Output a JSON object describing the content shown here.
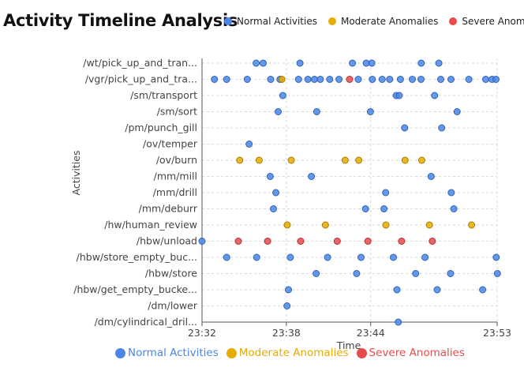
{
  "colors": {
    "normal": "#4a86e8",
    "moderate": "#e6ac00",
    "severe": "#e84b4b",
    "grid": "#d9d9d9"
  },
  "legend": {
    "normal": "Normal Activities",
    "moderate": "Moderate Anomalies",
    "severe": "Severe Anomalies"
  },
  "chart_data": {
    "type": "scatter",
    "title": "Activity Timeline Analysis",
    "xlabel": "Time",
    "ylabel": "Activities",
    "legend_position": "top-right",
    "grid": true,
    "xlim": [
      "23:32",
      "23:53"
    ],
    "x_ticks": [
      "23:32",
      "23:38",
      "23:44",
      "23:53"
    ],
    "categories": [
      "/wt/pick_up_and_tran...",
      "/vgr/pick_up_and_tra...",
      "/sm/transport",
      "/sm/sort",
      "/pm/punch_gill",
      "/ov/temper",
      "/ov/burn",
      "/mm/mill",
      "/mm/drill",
      "/mm/deburr",
      "/hw/human_review",
      "/hbw/unload",
      "/hbw/store_empty_buc...",
      "/hbw/store",
      "/hbw/get_empty_bucke...",
      "/dm/lower",
      "/dm/cylindrical_dril..."
    ],
    "series": [
      {
        "name": "Normal Activities",
        "points": [
          [
            "23:35:51",
            "/wt/pick_up_and_tran..."
          ],
          [
            "23:36:21",
            "/wt/pick_up_and_tran..."
          ],
          [
            "23:38:58",
            "/wt/pick_up_and_tran..."
          ],
          [
            "23:42:42",
            "/wt/pick_up_and_tran..."
          ],
          [
            "23:43:41",
            "/wt/pick_up_and_tran..."
          ],
          [
            "23:44:05",
            "/wt/pick_up_and_tran..."
          ],
          [
            "23:47:36",
            "/wt/pick_up_and_tran..."
          ],
          [
            "23:48:51",
            "/wt/pick_up_and_tran..."
          ],
          [
            "23:32:53",
            "/vgr/pick_up_and_tra..."
          ],
          [
            "23:33:45",
            "/vgr/pick_up_and_tra..."
          ],
          [
            "23:35:13",
            "/vgr/pick_up_and_tra..."
          ],
          [
            "23:36:53",
            "/vgr/pick_up_and_tra..."
          ],
          [
            "23:37:33",
            "/vgr/pick_up_and_tra..."
          ],
          [
            "23:38:52",
            "/vgr/pick_up_and_tra..."
          ],
          [
            "23:39:32",
            "/vgr/pick_up_and_tra..."
          ],
          [
            "23:40:00",
            "/vgr/pick_up_and_tra..."
          ],
          [
            "23:40:25",
            "/vgr/pick_up_and_tra..."
          ],
          [
            "23:41:05",
            "/vgr/pick_up_and_tra..."
          ],
          [
            "23:41:45",
            "/vgr/pick_up_and_tra..."
          ],
          [
            "23:43:07",
            "/vgr/pick_up_and_tra..."
          ],
          [
            "23:44:07",
            "/vgr/pick_up_and_tra..."
          ],
          [
            "23:44:49",
            "/vgr/pick_up_and_tra..."
          ],
          [
            "23:45:21",
            "/vgr/pick_up_and_tra..."
          ],
          [
            "23:46:07",
            "/vgr/pick_up_and_tra..."
          ],
          [
            "23:46:58",
            "/vgr/pick_up_and_tra..."
          ],
          [
            "23:47:35",
            "/vgr/pick_up_and_tra..."
          ],
          [
            "23:48:59",
            "/vgr/pick_up_and_tra..."
          ],
          [
            "23:49:43",
            "/vgr/pick_up_and_tra..."
          ],
          [
            "23:50:59",
            "/vgr/pick_up_and_tra..."
          ],
          [
            "23:52:11",
            "/vgr/pick_up_and_tra..."
          ],
          [
            "23:52:38",
            "/vgr/pick_up_and_tra..."
          ],
          [
            "23:52:55",
            "/vgr/pick_up_and_tra..."
          ],
          [
            "23:37:45",
            "/sm/transport"
          ],
          [
            "23:45:49",
            "/sm/transport"
          ],
          [
            "23:46:02",
            "/sm/transport"
          ],
          [
            "23:48:33",
            "/sm/transport"
          ],
          [
            "23:37:25",
            "/sm/sort"
          ],
          [
            "23:40:10",
            "/sm/sort"
          ],
          [
            "23:43:59",
            "/sm/sort"
          ],
          [
            "23:50:09",
            "/sm/sort"
          ],
          [
            "23:46:25",
            "/pm/punch_gill"
          ],
          [
            "23:49:03",
            "/pm/punch_gill"
          ],
          [
            "23:35:21",
            "/ov/temper"
          ],
          [
            "23:36:51",
            "/mm/mill"
          ],
          [
            "23:39:47",
            "/mm/mill"
          ],
          [
            "23:48:18",
            "/mm/mill"
          ],
          [
            "23:37:15",
            "/mm/drill"
          ],
          [
            "23:45:04",
            "/mm/drill"
          ],
          [
            "23:49:44",
            "/mm/drill"
          ],
          [
            "23:37:05",
            "/mm/deburr"
          ],
          [
            "23:43:38",
            "/mm/deburr"
          ],
          [
            "23:44:57",
            "/mm/deburr"
          ],
          [
            "23:49:55",
            "/mm/deburr"
          ],
          [
            "23:32:00",
            "/hbw/unload"
          ],
          [
            "23:33:45",
            "/hbw/store_empty_buc..."
          ],
          [
            "23:35:53",
            "/hbw/store_empty_buc..."
          ],
          [
            "23:38:17",
            "/hbw/store_empty_buc..."
          ],
          [
            "23:40:56",
            "/hbw/store_empty_buc..."
          ],
          [
            "23:43:19",
            "/hbw/store_empty_buc..."
          ],
          [
            "23:45:37",
            "/hbw/store_empty_buc..."
          ],
          [
            "23:47:52",
            "/hbw/store_empty_buc..."
          ],
          [
            "23:52:56",
            "/hbw/store_empty_buc..."
          ],
          [
            "23:40:07",
            "/hbw/store"
          ],
          [
            "23:43:00",
            "/hbw/store"
          ],
          [
            "23:47:12",
            "/hbw/store"
          ],
          [
            "23:49:41",
            "/hbw/store"
          ],
          [
            "23:53:01",
            "/hbw/store"
          ],
          [
            "23:38:09",
            "/hbw/get_empty_bucke..."
          ],
          [
            "23:45:52",
            "/hbw/get_empty_bucke..."
          ],
          [
            "23:48:44",
            "/hbw/get_empty_bucke..."
          ],
          [
            "23:51:58",
            "/hbw/get_empty_bucke..."
          ],
          [
            "23:38:03",
            "/dm/lower"
          ],
          [
            "23:45:58",
            "/dm/cylindrical_dril..."
          ]
        ]
      },
      {
        "name": "Moderate Anomalies",
        "points": [
          [
            "23:37:41",
            "/vgr/pick_up_and_tra..."
          ],
          [
            "23:34:41",
            "/ov/burn"
          ],
          [
            "23:36:04",
            "/ov/burn"
          ],
          [
            "23:38:21",
            "/ov/burn"
          ],
          [
            "23:42:11",
            "/ov/burn"
          ],
          [
            "23:43:09",
            "/ov/burn"
          ],
          [
            "23:46:27",
            "/ov/burn"
          ],
          [
            "23:47:38",
            "/ov/burn"
          ],
          [
            "23:38:04",
            "/hw/human_review"
          ],
          [
            "23:40:47",
            "/hw/human_review"
          ],
          [
            "23:45:05",
            "/hw/human_review"
          ],
          [
            "23:48:11",
            "/hw/human_review"
          ],
          [
            "23:51:11",
            "/hw/human_review"
          ]
        ]
      },
      {
        "name": "Severe Anomalies",
        "points": [
          [
            "23:42:30",
            "/vgr/pick_up_and_tra..."
          ],
          [
            "23:34:35",
            "/hbw/unload"
          ],
          [
            "23:36:40",
            "/hbw/unload"
          ],
          [
            "23:39:01",
            "/hbw/unload"
          ],
          [
            "23:41:37",
            "/hbw/unload"
          ],
          [
            "23:43:48",
            "/hbw/unload"
          ],
          [
            "23:46:12",
            "/hbw/unload"
          ],
          [
            "23:48:23",
            "/hbw/unload"
          ]
        ]
      }
    ]
  }
}
